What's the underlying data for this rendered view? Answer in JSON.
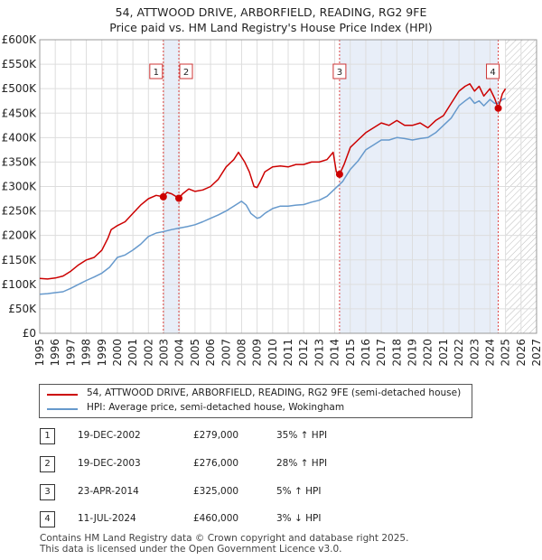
{
  "title_line1": "54, ATTWOOD DRIVE, ARBORFIELD, READING, RG2 9FE",
  "title_line2": "Price paid vs. HM Land Registry's House Price Index (HPI)",
  "legend": {
    "red_label": "54, ATTWOOD DRIVE, ARBORFIELD, READING, RG2 9FE (semi-detached house)",
    "blue_label": "HPI: Average price, semi-detached house, Wokingham"
  },
  "colors": {
    "red": "#cc0000",
    "blue": "#6699cc",
    "shade": "#e8eef8"
  },
  "transactions": [
    {
      "num": "1",
      "date": "19-DEC-2002",
      "price": "£279,000",
      "hpi": "35% ↑ HPI"
    },
    {
      "num": "2",
      "date": "19-DEC-2003",
      "price": "£276,000",
      "hpi": "28% ↑ HPI"
    },
    {
      "num": "3",
      "date": "23-APR-2014",
      "price": "£325,000",
      "hpi": "5% ↑ HPI"
    },
    {
      "num": "4",
      "date": "11-JUL-2024",
      "price": "£460,000",
      "hpi": "3% ↓ HPI"
    }
  ],
  "footer": {
    "line1": "Contains HM Land Registry data © Crown copyright and database right 2025.",
    "line2": "This data is licensed under the Open Government Licence v3.0."
  },
  "chart_data": {
    "type": "line",
    "xlim": [
      1995,
      2027
    ],
    "ylim": [
      0,
      600000
    ],
    "x_ticks": [
      "1995",
      "1996",
      "1997",
      "1998",
      "1999",
      "2000",
      "2001",
      "2002",
      "2003",
      "2004",
      "2005",
      "2006",
      "2007",
      "2008",
      "2009",
      "2010",
      "2011",
      "2012",
      "2013",
      "2014",
      "2015",
      "2016",
      "2017",
      "2018",
      "2019",
      "2020",
      "2021",
      "2022",
      "2023",
      "2024",
      "2025",
      "2026",
      "2027"
    ],
    "y_ticks": [
      {
        "value": 0,
        "label": "£0"
      },
      {
        "value": 50000,
        "label": "£50K"
      },
      {
        "value": 100000,
        "label": "£100K"
      },
      {
        "value": 150000,
        "label": "£150K"
      },
      {
        "value": 200000,
        "label": "£200K"
      },
      {
        "value": 250000,
        "label": "£250K"
      },
      {
        "value": 300000,
        "label": "£300K"
      },
      {
        "value": 350000,
        "label": "£350K"
      },
      {
        "value": 400000,
        "label": "£400K"
      },
      {
        "value": 450000,
        "label": "£450K"
      },
      {
        "value": 500000,
        "label": "£500K"
      },
      {
        "value": 550000,
        "label": "£550K"
      },
      {
        "value": 600000,
        "label": "£600K"
      }
    ],
    "shaded_ranges": [
      [
        2002.96,
        2003.96
      ],
      [
        2014.31,
        2024.53
      ]
    ],
    "hatched_from": 2025.0,
    "sale_markers": [
      {
        "label": "1",
        "x": 2002.96,
        "y": 279000
      },
      {
        "label": "2",
        "x": 2003.96,
        "y": 276000
      },
      {
        "label": "3",
        "x": 2014.31,
        "y": 325000
      },
      {
        "label": "4",
        "x": 2024.53,
        "y": 460000
      }
    ],
    "series": [
      {
        "name": "54, ATTWOOD DRIVE, ARBORFIELD, READING, RG2 9FE (semi-detached house)",
        "x": [
          1995.0,
          1995.5,
          1996.0,
          1996.5,
          1997.0,
          1997.5,
          1998.0,
          1998.5,
          1999.0,
          1999.4,
          1999.6,
          2000.0,
          2000.5,
          2001.0,
          2001.5,
          2002.0,
          2002.5,
          2002.96,
          2003.2,
          2003.5,
          2003.96,
          2004.2,
          2004.6,
          2005.0,
          2005.5,
          2006.0,
          2006.5,
          2007.0,
          2007.5,
          2007.8,
          2008.2,
          2008.5,
          2008.8,
          2009.0,
          2009.2,
          2009.5,
          2010.0,
          2010.5,
          2011.0,
          2011.5,
          2012.0,
          2012.5,
          2013.0,
          2013.5,
          2013.9,
          2014.1,
          2014.31,
          2014.6,
          2015.0,
          2015.5,
          2016.0,
          2016.5,
          2017.0,
          2017.5,
          2018.0,
          2018.5,
          2019.0,
          2019.5,
          2020.0,
          2020.5,
          2021.0,
          2021.5,
          2022.0,
          2022.4,
          2022.7,
          2023.0,
          2023.3,
          2023.6,
          2024.0,
          2024.3,
          2024.53,
          2024.8,
          2025.0
        ],
        "y": [
          112000,
          111000,
          113000,
          117000,
          127000,
          140000,
          150000,
          155000,
          170000,
          195000,
          212000,
          220000,
          228000,
          245000,
          262000,
          275000,
          282000,
          279000,
          288000,
          285000,
          276000,
          285000,
          295000,
          290000,
          293000,
          300000,
          315000,
          340000,
          355000,
          370000,
          350000,
          330000,
          300000,
          298000,
          310000,
          330000,
          340000,
          342000,
          340000,
          345000,
          345000,
          350000,
          350000,
          355000,
          370000,
          330000,
          325000,
          345000,
          380000,
          395000,
          410000,
          420000,
          430000,
          425000,
          435000,
          425000,
          425000,
          430000,
          420000,
          435000,
          445000,
          470000,
          495000,
          505000,
          510000,
          495000,
          505000,
          485000,
          500000,
          480000,
          460000,
          490000,
          500000
        ]
      },
      {
        "name": "HPI: Average price, semi-detached house, Wokingham",
        "x": [
          1995.0,
          1995.5,
          1996.0,
          1996.5,
          1997.0,
          1997.5,
          1998.0,
          1998.5,
          1999.0,
          1999.5,
          2000.0,
          2000.5,
          2001.0,
          2001.5,
          2002.0,
          2002.5,
          2003.0,
          2003.5,
          2004.0,
          2004.5,
          2005.0,
          2005.5,
          2006.0,
          2006.5,
          2007.0,
          2007.5,
          2008.0,
          2008.3,
          2008.6,
          2009.0,
          2009.2,
          2009.5,
          2010.0,
          2010.5,
          2011.0,
          2011.5,
          2012.0,
          2012.5,
          2013.0,
          2013.5,
          2014.0,
          2014.5,
          2015.0,
          2015.5,
          2016.0,
          2016.5,
          2017.0,
          2017.5,
          2018.0,
          2018.5,
          2019.0,
          2019.5,
          2020.0,
          2020.5,
          2021.0,
          2021.5,
          2022.0,
          2022.4,
          2022.7,
          2023.0,
          2023.3,
          2023.6,
          2024.0,
          2024.3,
          2024.53,
          2024.8,
          2025.0
        ],
        "y": [
          80000,
          81000,
          83000,
          85000,
          92000,
          100000,
          108000,
          115000,
          123000,
          135000,
          155000,
          160000,
          170000,
          182000,
          198000,
          205000,
          208000,
          212000,
          215000,
          218000,
          222000,
          228000,
          235000,
          242000,
          250000,
          260000,
          270000,
          262000,
          245000,
          235000,
          237000,
          245000,
          255000,
          260000,
          260000,
          262000,
          263000,
          268000,
          272000,
          280000,
          295000,
          310000,
          335000,
          352000,
          375000,
          385000,
          395000,
          395000,
          400000,
          398000,
          395000,
          398000,
          400000,
          410000,
          425000,
          440000,
          465000,
          475000,
          482000,
          470000,
          475000,
          465000,
          478000,
          470000,
          470000,
          478000,
          480000
        ]
      }
    ]
  }
}
